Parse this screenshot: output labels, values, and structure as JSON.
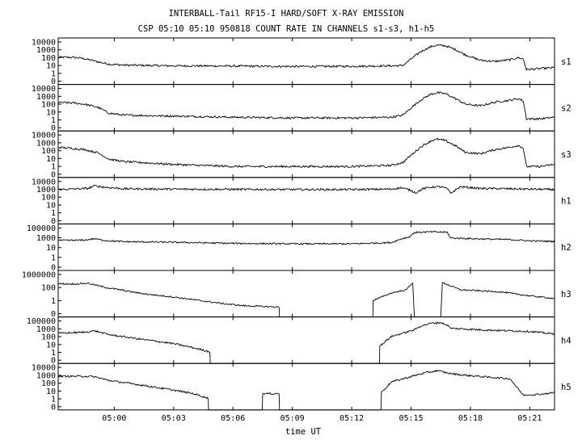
{
  "chart_data": {
    "type": "line",
    "title": "INTERBALL-Tail RF15-I HARD/SOFT X-RAY EMISSION",
    "subtitle": "CSP 05:10 05:10 950818  COUNT RATE IN CHANNELS s1-s3, h1-h5",
    "xlabel": "time UT",
    "x_ticks": [
      "05:00",
      "05:03",
      "05:06",
      "05:09",
      "05:12",
      "05:15",
      "05:18",
      "05:21"
    ],
    "xlim": [
      "04:57:10",
      "05:22:15"
    ],
    "yscale": "log",
    "grid": false,
    "panels": [
      {
        "name": "s1",
        "ylim": [
          0.2,
          20000
        ],
        "y_ticks": [
          "10000",
          "1000",
          "100",
          "10",
          "1",
          "0"
        ],
        "points": [
          [
            "04:57:10",
            170
          ],
          [
            "04:58:00",
            160
          ],
          [
            "04:58:30",
            120
          ],
          [
            "04:59:10",
            55
          ],
          [
            "04:59:45",
            30
          ],
          [
            "05:00:30",
            24
          ],
          [
            "05:03:00",
            20
          ],
          [
            "05:06:00",
            19
          ],
          [
            "05:09:00",
            17
          ],
          [
            "05:12:00",
            18
          ],
          [
            "05:14:00",
            20
          ],
          [
            "05:14:35",
            22
          ],
          [
            "05:15:00",
            110
          ],
          [
            "05:15:30",
            700
          ],
          [
            "05:16:00",
            2300
          ],
          [
            "05:16:20",
            3300
          ],
          [
            "05:16:45",
            2800
          ],
          [
            "05:17:15",
            1100
          ],
          [
            "05:17:45",
            300
          ],
          [
            "05:18:30",
            80
          ],
          [
            "05:19:15",
            60
          ],
          [
            "05:20:00",
            90
          ],
          [
            "05:20:25",
            150
          ],
          [
            "05:20:40",
            110
          ],
          [
            "05:20:50",
            8
          ],
          [
            "05:21:30",
            10
          ],
          [
            "05:22:15",
            13
          ]
        ]
      },
      {
        "name": "s2",
        "ylim": [
          0.2,
          20000
        ],
        "y_ticks": [
          "10000",
          "1000",
          "100",
          "10",
          "1",
          "0"
        ],
        "points": [
          [
            "04:57:10",
            230
          ],
          [
            "04:58:00",
            200
          ],
          [
            "04:58:30",
            150
          ],
          [
            "04:59:10",
            70
          ],
          [
            "04:59:45",
            16
          ],
          [
            "05:00:30",
            10
          ],
          [
            "05:03:00",
            8
          ],
          [
            "05:06:00",
            6
          ],
          [
            "05:09:00",
            5
          ],
          [
            "05:12:00",
            5
          ],
          [
            "05:14:00",
            6
          ],
          [
            "05:14:35",
            10
          ],
          [
            "05:15:00",
            60
          ],
          [
            "05:15:30",
            450
          ],
          [
            "05:16:00",
            1800
          ],
          [
            "05:16:20",
            2600
          ],
          [
            "05:16:45",
            2000
          ],
          [
            "05:17:15",
            600
          ],
          [
            "05:17:45",
            150
          ],
          [
            "05:18:30",
            100
          ],
          [
            "05:19:15",
            250
          ],
          [
            "05:20:00",
            400
          ],
          [
            "05:20:25",
            600
          ],
          [
            "05:20:40",
            350
          ],
          [
            "05:20:50",
            4
          ],
          [
            "05:21:30",
            4
          ],
          [
            "05:22:15",
            6
          ]
        ]
      },
      {
        "name": "s3",
        "ylim": [
          0.2,
          20000
        ],
        "y_ticks": [
          "10000",
          "1000",
          "100",
          "10",
          "1",
          "0"
        ],
        "points": [
          [
            "04:57:10",
            350
          ],
          [
            "04:58:00",
            250
          ],
          [
            "04:58:30",
            200
          ],
          [
            "04:59:10",
            90
          ],
          [
            "04:59:45",
            18
          ],
          [
            "05:00:30",
            10
          ],
          [
            "05:03:00",
            5
          ],
          [
            "05:06:00",
            3
          ],
          [
            "05:09:00",
            3
          ],
          [
            "05:12:00",
            3
          ],
          [
            "05:14:00",
            4
          ],
          [
            "05:14:35",
            8
          ],
          [
            "05:15:00",
            50
          ],
          [
            "05:15:30",
            400
          ],
          [
            "05:16:00",
            1700
          ],
          [
            "05:16:20",
            2600
          ],
          [
            "05:16:45",
            1800
          ],
          [
            "05:17:15",
            500
          ],
          [
            "05:17:45",
            100
          ],
          [
            "05:18:30",
            70
          ],
          [
            "05:19:15",
            200
          ],
          [
            "05:20:00",
            350
          ],
          [
            "05:20:25",
            550
          ],
          [
            "05:20:40",
            300
          ],
          [
            "05:20:50",
            3
          ],
          [
            "05:21:30",
            3
          ],
          [
            "05:22:15",
            5
          ]
        ]
      },
      {
        "name": "h1",
        "ylim": [
          0.2,
          20000
        ],
        "y_ticks": [
          "10000",
          "1000",
          "100",
          "10",
          "1",
          "0"
        ],
        "points": [
          [
            "04:57:10",
            1000
          ],
          [
            "04:58:40",
            1300
          ],
          [
            "04:59:00",
            2500
          ],
          [
            "04:59:30",
            1800
          ],
          [
            "05:00:30",
            1200
          ],
          [
            "05:03:00",
            1100
          ],
          [
            "05:06:00",
            1050
          ],
          [
            "05:09:00",
            1000
          ],
          [
            "05:12:00",
            1000
          ],
          [
            "05:14:00",
            1100
          ],
          [
            "05:14:30",
            1600
          ],
          [
            "05:15:00",
            800
          ],
          [
            "05:15:15",
            450
          ],
          [
            "05:15:35",
            1200
          ],
          [
            "05:16:00",
            1800
          ],
          [
            "05:16:30",
            2000
          ],
          [
            "05:16:50",
            1200
          ],
          [
            "05:17:00",
            400
          ],
          [
            "05:17:15",
            900
          ],
          [
            "05:17:30",
            2000
          ],
          [
            "05:18:30",
            1300
          ],
          [
            "05:20:00",
            1200
          ],
          [
            "05:21:00",
            1100
          ],
          [
            "05:22:15",
            1000
          ]
        ]
      },
      {
        "name": "h2",
        "ylim": [
          0.05,
          200000
        ],
        "y_ticks": [
          "100000",
          "1000",
          "10",
          "1",
          "0"
        ],
        "points": [
          [
            "04:57:10",
            900
          ],
          [
            "04:58:30",
            1000
          ],
          [
            "04:59:00",
            1600
          ],
          [
            "04:59:30",
            900
          ],
          [
            "05:00:30",
            600
          ],
          [
            "05:03:00",
            500
          ],
          [
            "05:06:00",
            350
          ],
          [
            "05:09:00",
            300
          ],
          [
            "05:12:00",
            300
          ],
          [
            "05:14:00",
            450
          ],
          [
            "05:14:30",
            1500
          ],
          [
            "05:14:55",
            3000
          ],
          [
            "05:15:10",
            12000
          ],
          [
            "05:16:00",
            15000
          ],
          [
            "05:16:50",
            13000
          ],
          [
            "05:17:00",
            2000
          ],
          [
            "05:18:30",
            1500
          ],
          [
            "05:20:00",
            1200
          ],
          [
            "05:21:00",
            800
          ],
          [
            "05:22:15",
            650
          ]
        ]
      },
      {
        "name": "h3",
        "ylim": [
          0.1,
          1000000
        ],
        "y_ticks": [
          "1000000",
          "100",
          "1",
          "0"
        ],
        "points": [
          [
            "04:57:10",
            10000
          ],
          [
            "04:58:00",
            9000
          ],
          [
            "04:58:40",
            12000
          ],
          [
            "04:59:30",
            3000
          ],
          [
            "05:01:30",
            300
          ],
          [
            "05:03:00",
            100
          ],
          [
            "05:04:30",
            25
          ],
          [
            "05:05:30",
            10
          ],
          [
            "05:06:30",
            5
          ],
          [
            "05:07:20",
            4
          ],
          [
            "05:08:20",
            3
          ],
          [
            "05:08:21",
            0.1
          ],
          [
            "05:13:04",
            0.1
          ],
          [
            "05:13:05",
            30
          ],
          [
            "05:14:00",
            400
          ],
          [
            "05:14:45",
            1200
          ],
          [
            "05:15:05",
            15000
          ],
          [
            "05:15:10",
            0.1
          ],
          [
            "05:16:30",
            0.1
          ],
          [
            "05:16:35",
            15000
          ],
          [
            "05:17:30",
            1200
          ],
          [
            "05:19:30",
            600
          ],
          [
            "05:21:00",
            150
          ],
          [
            "05:22:15",
            60
          ]
        ]
      },
      {
        "name": "h4",
        "ylim": [
          0.3,
          150000
        ],
        "y_ticks": [
          "100000",
          "1000",
          "100",
          "10",
          "1",
          "0"
        ],
        "points": [
          [
            "04:57:10",
            1500
          ],
          [
            "04:58:30",
            2000
          ],
          [
            "04:59:00",
            3000
          ],
          [
            "04:59:45",
            1000
          ],
          [
            "05:01:30",
            250
          ],
          [
            "05:03:00",
            80
          ],
          [
            "05:04:00",
            25
          ],
          [
            "05:04:50",
            8
          ],
          [
            "05:04:51",
            0.3
          ],
          [
            "05:13:24",
            0.3
          ],
          [
            "05:13:25",
            40
          ],
          [
            "05:14:00",
            600
          ],
          [
            "05:14:45",
            2000
          ],
          [
            "05:15:10",
            4000
          ],
          [
            "05:15:30",
            12000
          ],
          [
            "05:16:00",
            25000
          ],
          [
            "05:16:30",
            30000
          ],
          [
            "05:16:50",
            15000
          ],
          [
            "05:17:00",
            6000
          ],
          [
            "05:18:30",
            4000
          ],
          [
            "05:20:00",
            3000
          ],
          [
            "05:21:00",
            2500
          ],
          [
            "05:22:15",
            1200
          ]
        ]
      },
      {
        "name": "h5",
        "ylim": [
          0.3,
          150000
        ],
        "y_ticks": [
          "10000",
          "1000",
          "100",
          "10",
          "1",
          "0"
        ],
        "points": [
          [
            "04:57:10",
            4000
          ],
          [
            "04:58:30",
            4000
          ],
          [
            "04:59:00",
            3500
          ],
          [
            "04:59:45",
            1200
          ],
          [
            "05:01:30",
            300
          ],
          [
            "05:03:00",
            80
          ],
          [
            "05:04:00",
            30
          ],
          [
            "05:04:45",
            8
          ],
          [
            "05:04:46",
            0.3
          ],
          [
            "05:07:29",
            0.3
          ],
          [
            "05:07:30",
            30
          ],
          [
            "05:08:20",
            30
          ],
          [
            "05:08:21",
            0.3
          ],
          [
            "05:13:29",
            0.3
          ],
          [
            "05:13:30",
            40
          ],
          [
            "05:14:00",
            800
          ],
          [
            "05:14:45",
            2500
          ],
          [
            "05:15:30",
            8000
          ],
          [
            "05:16:20",
            20000
          ],
          [
            "05:16:50",
            10000
          ],
          [
            "05:17:30",
            6000
          ],
          [
            "05:19:00",
            3000
          ],
          [
            "05:20:00",
            2000
          ],
          [
            "05:20:40",
            20
          ],
          [
            "05:21:30",
            25
          ],
          [
            "05:22:15",
            40
          ]
        ]
      }
    ]
  }
}
